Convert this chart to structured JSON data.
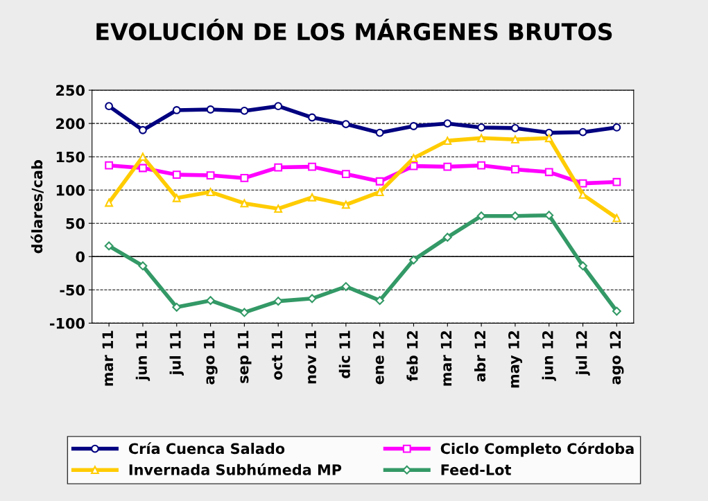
{
  "chart_data": {
    "type": "line",
    "title": "EVOLUCIÓN DE LOS MÁRGENES BRUTOS",
    "ylabel": "dólares/cab",
    "categories": [
      "mar 11",
      "jun 11",
      "jul 11",
      "ago 11",
      "sep 11",
      "oct 11",
      "nov 11",
      "dic 11",
      "ene 12",
      "feb 12",
      "mar 12",
      "abr 12",
      "may 12",
      "jun 12",
      "jul 12",
      "ago 12"
    ],
    "series": [
      {
        "name": "Cría Cuenca Salado",
        "color": "#000080",
        "marker": "circle",
        "values": [
          226,
          190,
          220,
          221,
          219,
          226,
          209,
          199,
          186,
          196,
          200,
          194,
          193,
          186,
          187,
          194
        ]
      },
      {
        "name": "Ciclo Completo Córdoba",
        "color": "#ff00ff",
        "marker": "square",
        "values": [
          137,
          133,
          123,
          122,
          118,
          134,
          135,
          124,
          113,
          136,
          135,
          137,
          131,
          127,
          110,
          112
        ]
      },
      {
        "name": "Invernada Subhúmeda MP",
        "color": "#ffcc00",
        "marker": "triangle",
        "values": [
          81,
          150,
          88,
          97,
          80,
          72,
          89,
          78,
          97,
          148,
          174,
          178,
          176,
          178,
          93,
          58
        ]
      },
      {
        "name": "Feed-Lot",
        "color": "#339966",
        "marker": "diamond",
        "values": [
          16,
          -14,
          -76,
          -66,
          -84,
          -67,
          -63,
          -45,
          -66,
          -5,
          29,
          61,
          61,
          62,
          -14,
          -82
        ]
      }
    ],
    "ylim": [
      -100,
      250
    ],
    "yticks": [
      -100,
      -50,
      0,
      50,
      100,
      150,
      200,
      250
    ],
    "grid": "y",
    "legend": "bottom",
    "line_style": "solid"
  }
}
